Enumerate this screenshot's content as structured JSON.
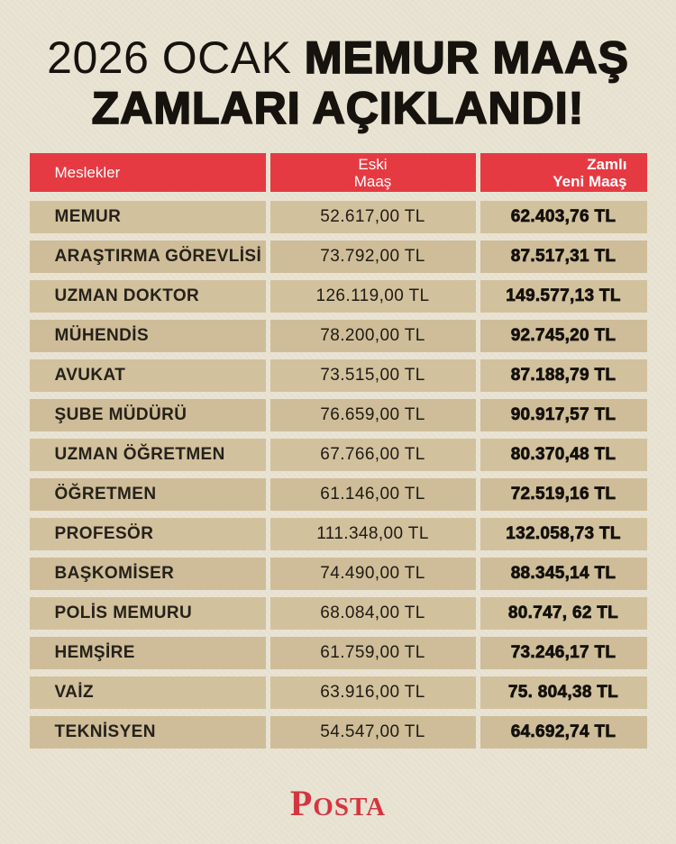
{
  "title": {
    "line1_light": "2026 OCAK ",
    "line1_heavy": "MEMUR MAAŞ",
    "line2": "ZAMLARI AÇIKLANDI!"
  },
  "table": {
    "header": {
      "professions": "Meslekler",
      "old_salary_line1": "Eski",
      "old_salary_line2": "Maaş",
      "new_salary_line1": "Zamlı",
      "new_salary_line2": "Yeni Maaş"
    },
    "rows": [
      {
        "profession": "MEMUR",
        "old": "52.617,00 TL",
        "new": "62.403,76 TL"
      },
      {
        "profession": "ARAŞTIRMA GÖREVLİSİ",
        "old": "73.792,00 TL",
        "new": "87.517,31 TL"
      },
      {
        "profession": "UZMAN DOKTOR",
        "old": "126.119,00 TL",
        "new": "149.577,13 TL"
      },
      {
        "profession": "MÜHENDİS",
        "old": "78.200,00 TL",
        "new": "92.745,20 TL"
      },
      {
        "profession": "AVUKAT",
        "old": "73.515,00 TL",
        "new": "87.188,79 TL"
      },
      {
        "profession": "ŞUBE MÜDÜRÜ",
        "old": "76.659,00 TL",
        "new": "90.917,57 TL"
      },
      {
        "profession": "UZMAN ÖĞRETMEN",
        "old": "67.766,00 TL",
        "new": "80.370,48 TL"
      },
      {
        "profession": "ÖĞRETMEN",
        "old": "61.146,00 TL",
        "new": "72.519,16 TL"
      },
      {
        "profession": "PROFESÖR",
        "old": "111.348,00 TL",
        "new": "132.058,73 TL"
      },
      {
        "profession": "BAŞKOMİSER",
        "old": "74.490,00 TL",
        "new": "88.345,14 TL"
      },
      {
        "profession": "POLİS MEMURU",
        "old": "68.084,00 TL",
        "new": "80.747, 62 TL"
      },
      {
        "profession": "HEMŞİRE",
        "old": "61.759,00 TL",
        "new": "73.246,17 TL"
      },
      {
        "profession": "VAİZ",
        "old": "63.916,00 TL",
        "new": "75. 804,38 TL"
      },
      {
        "profession": "TEKNİSYEN",
        "old": "54.547,00 TL",
        "new": "64.692,74 TL"
      }
    ]
  },
  "footer": {
    "brand_initial": "P",
    "brand_rest": "OSTA"
  },
  "colors": {
    "background": "#e9e3d3",
    "header_red": "#e63a42",
    "row_tan": "#d2c19d",
    "title_ink": "#16130e",
    "logo_red": "#d4353f"
  }
}
